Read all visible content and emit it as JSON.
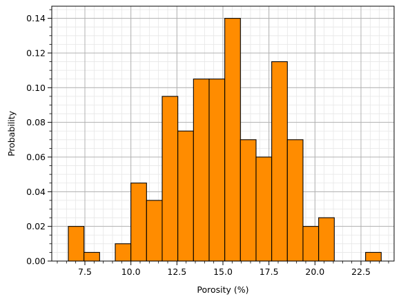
{
  "chart_data": {
    "type": "bar",
    "xlabel": "Porosity (%)",
    "ylabel": "Probability",
    "xlim": [
      5.7,
      24.3
    ],
    "ylim": [
      0,
      0.147
    ],
    "grid": true,
    "minor_grid": true,
    "bar_color": "#ff8c00",
    "edge_color": "#000000",
    "bin_width": 0.85,
    "bins": [
      {
        "left": 6.6,
        "value": 0.02
      },
      {
        "left": 7.45,
        "value": 0.005
      },
      {
        "left": 8.3,
        "value": 0.0
      },
      {
        "left": 9.15,
        "value": 0.01
      },
      {
        "left": 10.0,
        "value": 0.045
      },
      {
        "left": 10.85,
        "value": 0.035
      },
      {
        "left": 11.7,
        "value": 0.095
      },
      {
        "left": 12.55,
        "value": 0.075
      },
      {
        "left": 13.4,
        "value": 0.105
      },
      {
        "left": 14.25,
        "value": 0.105
      },
      {
        "left": 15.1,
        "value": 0.14
      },
      {
        "left": 15.95,
        "value": 0.07
      },
      {
        "left": 16.8,
        "value": 0.06
      },
      {
        "left": 17.65,
        "value": 0.115
      },
      {
        "left": 18.5,
        "value": 0.07
      },
      {
        "left": 19.35,
        "value": 0.02
      },
      {
        "left": 20.2,
        "value": 0.025
      },
      {
        "left": 21.05,
        "value": 0.0
      },
      {
        "left": 21.9,
        "value": 0.0
      },
      {
        "left": 22.75,
        "value": 0.005
      }
    ],
    "x_ticks": [
      "7.5",
      "10.0",
      "12.5",
      "15.0",
      "17.5",
      "20.0",
      "22.5"
    ],
    "y_ticks": [
      "0.00",
      "0.02",
      "0.04",
      "0.06",
      "0.08",
      "0.10",
      "0.12",
      "0.14"
    ]
  }
}
